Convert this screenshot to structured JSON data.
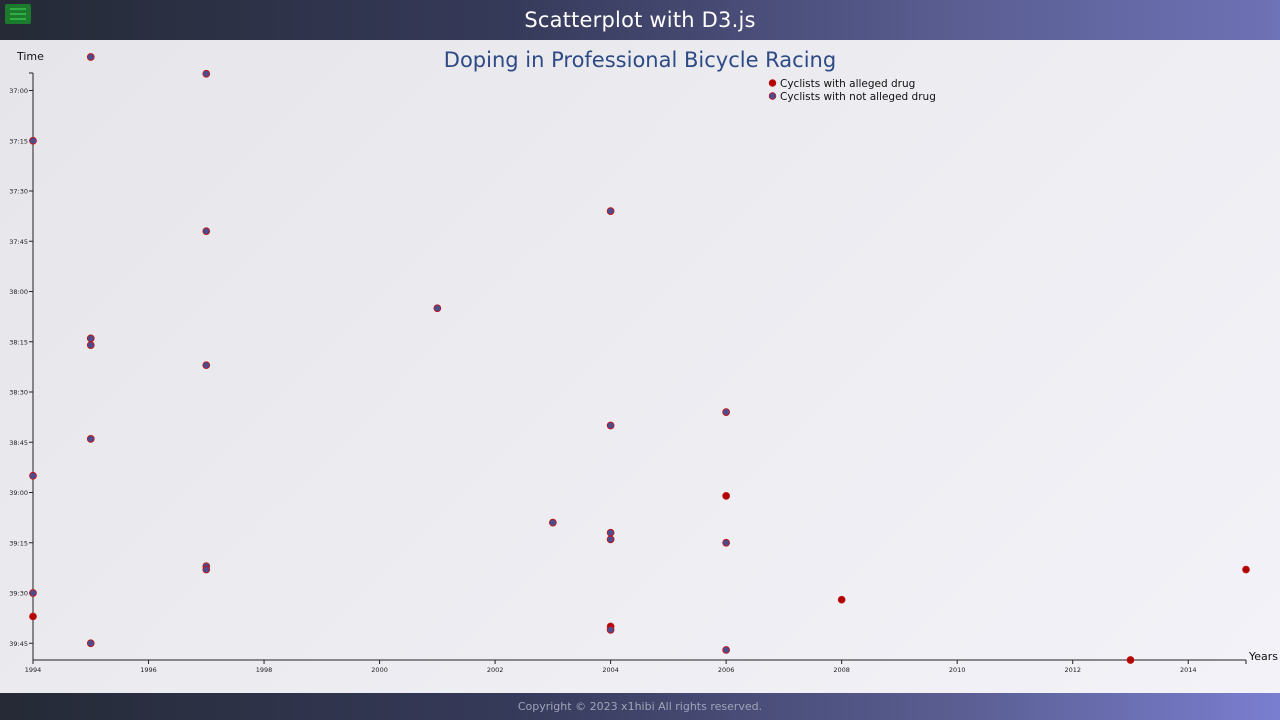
{
  "header": {
    "title": "Scatterplot with D3.js",
    "menu_icon": "hamburger-icon"
  },
  "footer": {
    "copyright": "Copyright © 2023 x1hibi All rights reserved."
  },
  "colors": {
    "doping": "#b10000",
    "clean": "#4b4d8f",
    "stroke": "#c01515",
    "title": "#2d4a86"
  },
  "chart_data": {
    "type": "scatter",
    "title": "Doping in Professional Bicycle Racing",
    "xlabel": "Years",
    "ylabel": "Time",
    "xlim": [
      1994,
      2015
    ],
    "ylim_seconds": [
      2210,
      2390
    ],
    "x_ticks": [
      "1994",
      "1996",
      "1998",
      "2000",
      "2002",
      "2004",
      "2006",
      "2008",
      "2010",
      "2012",
      "2014"
    ],
    "y_ticks": [
      "37:00",
      "37:15",
      "37:30",
      "37:45",
      "38:00",
      "38:15",
      "38:30",
      "38:45",
      "39:00",
      "39:15",
      "39:30",
      "39:45"
    ],
    "legend": {
      "position": "top-right",
      "items": [
        {
          "label": "Cyclists with alleged drug",
          "series": "doping"
        },
        {
          "label": "Cyclists with not alleged drug",
          "series": "clean"
        }
      ]
    },
    "points": [
      {
        "year": 1995,
        "time": "36:50",
        "doping": true
      },
      {
        "year": 1997,
        "time": "36:55",
        "doping": true
      },
      {
        "year": 1994,
        "time": "37:15",
        "doping": true
      },
      {
        "year": 2004,
        "time": "37:36",
        "doping": true
      },
      {
        "year": 1997,
        "time": "37:42",
        "doping": true
      },
      {
        "year": 2001,
        "time": "38:05",
        "doping": true
      },
      {
        "year": 1995,
        "time": "38:14",
        "doping": true
      },
      {
        "year": 1995,
        "time": "38:16",
        "doping": true
      },
      {
        "year": 1997,
        "time": "38:22",
        "doping": true
      },
      {
        "year": 2006,
        "time": "38:36",
        "doping": true
      },
      {
        "year": 2004,
        "time": "38:40",
        "doping": true
      },
      {
        "year": 1995,
        "time": "38:44",
        "doping": true
      },
      {
        "year": 1994,
        "time": "38:55",
        "doping": true
      },
      {
        "year": 2006,
        "time": "39:01",
        "doping": false
      },
      {
        "year": 2003,
        "time": "39:09",
        "doping": true
      },
      {
        "year": 2004,
        "time": "39:12",
        "doping": true
      },
      {
        "year": 2004,
        "time": "39:14",
        "doping": true
      },
      {
        "year": 2006,
        "time": "39:15",
        "doping": true
      },
      {
        "year": 1997,
        "time": "39:22",
        "doping": true
      },
      {
        "year": 1997,
        "time": "39:23",
        "doping": true
      },
      {
        "year": 2015,
        "time": "39:23",
        "doping": false
      },
      {
        "year": 1994,
        "time": "39:30",
        "doping": true
      },
      {
        "year": 2008,
        "time": "39:32",
        "doping": false
      },
      {
        "year": 1994,
        "time": "39:37",
        "doping": false
      },
      {
        "year": 2004,
        "time": "39:40",
        "doping": false
      },
      {
        "year": 2004,
        "time": "39:41",
        "doping": true
      },
      {
        "year": 1995,
        "time": "39:45",
        "doping": true
      },
      {
        "year": 2006,
        "time": "39:47",
        "doping": true
      },
      {
        "year": 2013,
        "time": "39:50",
        "doping": false
      }
    ]
  }
}
